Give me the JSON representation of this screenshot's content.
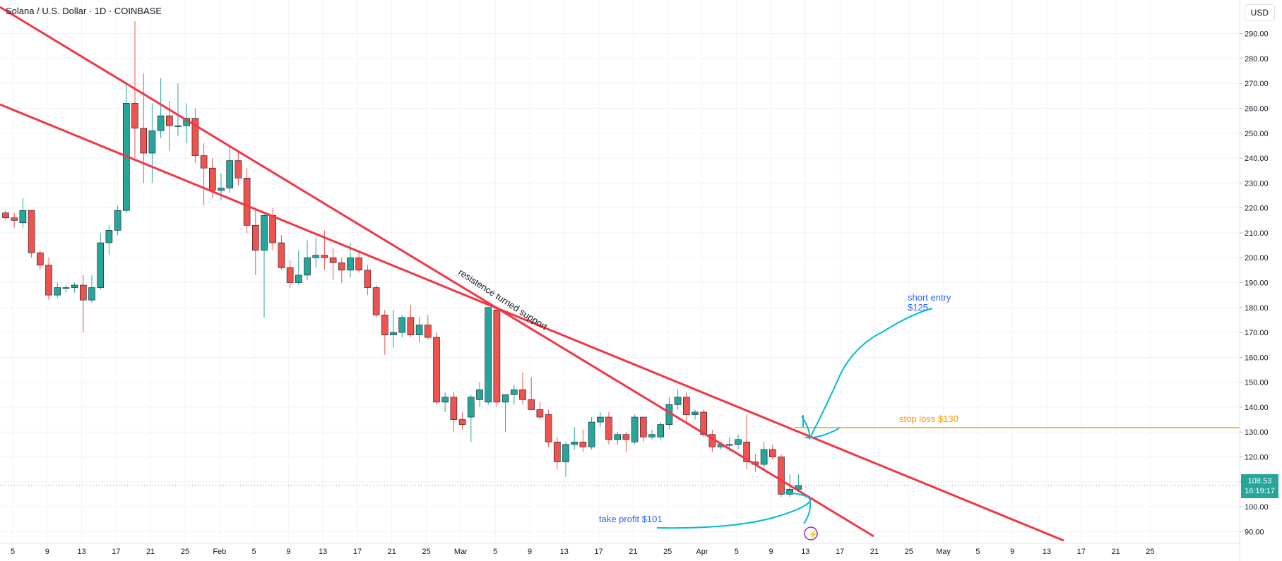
{
  "header": {
    "title": "Solana / U.S. Dollar · 1D · COINBASE"
  },
  "currency_button": "USD",
  "price_tag": {
    "price": "108.53",
    "countdown": "16:19:17"
  },
  "colors": {
    "up": "#26a69a",
    "down": "#ef5350",
    "trendline": "#f23645",
    "stoploss": "#ff9800",
    "annot_blue": "#2962ff",
    "sketch": "#00bcd4",
    "grid": "#f0f3fa",
    "text": "#131722"
  },
  "annotations": {
    "support_text": "resistence turned support",
    "short_entry_line1": "short entry",
    "short_entry_line2": "$125",
    "stop_loss": "stop loss $130",
    "take_profit": "take profit $101"
  },
  "chart_data": {
    "type": "candlestick",
    "title": "Solana / U.S. Dollar · 1D · COINBASE",
    "ylim": [
      85,
      295
    ],
    "y_ticks": [
      90,
      100,
      110,
      120,
      130,
      140,
      150,
      160,
      170,
      180,
      190,
      200,
      210,
      220,
      230,
      240,
      250,
      260,
      270,
      280,
      290
    ],
    "x_tick_labels": [
      "5",
      "9",
      "13",
      "17",
      "21",
      "25",
      "Feb",
      "5",
      "9",
      "13",
      "17",
      "21",
      "25",
      "Mar",
      "5",
      "9",
      "13",
      "17",
      "21",
      "25",
      "Apr",
      "5",
      "9",
      "13",
      "17",
      "21",
      "25",
      "May",
      "5",
      "9",
      "13",
      "17",
      "21",
      "25"
    ],
    "grid": true,
    "last_price": 108.53,
    "candles": [
      {
        "d": "Jan 1",
        "o": 218,
        "h": 219,
        "l": 215,
        "c": 216
      },
      {
        "d": "Jan 2",
        "o": 216,
        "h": 218,
        "l": 212,
        "c": 215
      },
      {
        "d": "Jan 3",
        "o": 214,
        "h": 224,
        "l": 212,
        "c": 219
      },
      {
        "d": "Jan 4",
        "o": 219,
        "h": 219,
        "l": 200,
        "c": 202
      },
      {
        "d": "Jan 5",
        "o": 202,
        "h": 203,
        "l": 195,
        "c": 197
      },
      {
        "d": "Jan 6",
        "o": 197,
        "h": 200,
        "l": 183,
        "c": 185
      },
      {
        "d": "Jan 7",
        "o": 185,
        "h": 190,
        "l": 184,
        "c": 188
      },
      {
        "d": "Jan 8",
        "o": 188,
        "h": 189,
        "l": 186,
        "c": 188
      },
      {
        "d": "Jan 9",
        "o": 188,
        "h": 190,
        "l": 186,
        "c": 189
      },
      {
        "d": "Jan 10",
        "o": 189,
        "h": 193,
        "l": 170,
        "c": 183
      },
      {
        "d": "Jan 11",
        "o": 183,
        "h": 193,
        "l": 182,
        "c": 188
      },
      {
        "d": "Jan 12",
        "o": 188,
        "h": 210,
        "l": 187,
        "c": 206
      },
      {
        "d": "Jan 13",
        "o": 206,
        "h": 213,
        "l": 201,
        "c": 211
      },
      {
        "d": "Jan 14",
        "o": 211,
        "h": 221,
        "l": 209,
        "c": 219
      },
      {
        "d": "Jan 15",
        "o": 219,
        "h": 270,
        "l": 218,
        "c": 262
      },
      {
        "d": "Jan 16",
        "o": 262,
        "h": 295,
        "l": 240,
        "c": 252
      },
      {
        "d": "Jan 17",
        "o": 252,
        "h": 274,
        "l": 230,
        "c": 242
      },
      {
        "d": "Jan 18",
        "o": 242,
        "h": 262,
        "l": 230,
        "c": 251
      },
      {
        "d": "Jan 19",
        "o": 251,
        "h": 272,
        "l": 248,
        "c": 257
      },
      {
        "d": "Jan 20",
        "o": 257,
        "h": 263,
        "l": 243,
        "c": 253
      },
      {
        "d": "Jan 21",
        "o": 253,
        "h": 270,
        "l": 249,
        "c": 253
      },
      {
        "d": "Jan 22",
        "o": 253,
        "h": 262,
        "l": 246,
        "c": 256
      },
      {
        "d": "Jan 23",
        "o": 256,
        "h": 260,
        "l": 238,
        "c": 241
      },
      {
        "d": "Jan 24",
        "o": 241,
        "h": 246,
        "l": 221,
        "c": 236
      },
      {
        "d": "Jan 25",
        "o": 236,
        "h": 240,
        "l": 224,
        "c": 227
      },
      {
        "d": "Jan 26",
        "o": 227,
        "h": 234,
        "l": 223,
        "c": 228
      },
      {
        "d": "Jan 27",
        "o": 228,
        "h": 245,
        "l": 226,
        "c": 239
      },
      {
        "d": "Jan 28",
        "o": 239,
        "h": 243,
        "l": 229,
        "c": 232
      },
      {
        "d": "Jan 29",
        "o": 232,
        "h": 236,
        "l": 210,
        "c": 213
      },
      {
        "d": "Jan 30",
        "o": 213,
        "h": 219,
        "l": 193,
        "c": 203
      },
      {
        "d": "Jan 31",
        "o": 203,
        "h": 218,
        "l": 176,
        "c": 217
      },
      {
        "d": "Feb 1",
        "o": 217,
        "h": 220,
        "l": 203,
        "c": 206
      },
      {
        "d": "Feb 2",
        "o": 206,
        "h": 209,
        "l": 195,
        "c": 196
      },
      {
        "d": "Feb 3",
        "o": 196,
        "h": 199,
        "l": 188,
        "c": 190
      },
      {
        "d": "Feb 4",
        "o": 190,
        "h": 203,
        "l": 189,
        "c": 193
      },
      {
        "d": "Feb 5",
        "o": 193,
        "h": 207,
        "l": 191,
        "c": 200
      },
      {
        "d": "Feb 6",
        "o": 200,
        "h": 208,
        "l": 196,
        "c": 201
      },
      {
        "d": "Feb 7",
        "o": 201,
        "h": 211,
        "l": 195,
        "c": 200
      },
      {
        "d": "Feb 8",
        "o": 200,
        "h": 204,
        "l": 191,
        "c": 198
      },
      {
        "d": "Feb 9",
        "o": 198,
        "h": 200,
        "l": 190,
        "c": 195
      },
      {
        "d": "Feb 10",
        "o": 195,
        "h": 206,
        "l": 192,
        "c": 200
      },
      {
        "d": "Feb 11",
        "o": 200,
        "h": 203,
        "l": 194,
        "c": 195
      },
      {
        "d": "Feb 12",
        "o": 195,
        "h": 197,
        "l": 185,
        "c": 188
      },
      {
        "d": "Feb 13",
        "o": 188,
        "h": 189,
        "l": 176,
        "c": 177
      },
      {
        "d": "Feb 14",
        "o": 177,
        "h": 179,
        "l": 161,
        "c": 169
      },
      {
        "d": "Feb 15",
        "o": 169,
        "h": 179,
        "l": 164,
        "c": 170
      },
      {
        "d": "Feb 16",
        "o": 170,
        "h": 177,
        "l": 168,
        "c": 176
      },
      {
        "d": "Feb 17",
        "o": 176,
        "h": 181,
        "l": 168,
        "c": 169
      },
      {
        "d": "Feb 18",
        "o": 169,
        "h": 176,
        "l": 166,
        "c": 173
      },
      {
        "d": "Feb 19",
        "o": 173,
        "h": 177,
        "l": 167,
        "c": 168
      },
      {
        "d": "Feb 20",
        "o": 168,
        "h": 170,
        "l": 141,
        "c": 142
      },
      {
        "d": "Feb 21",
        "o": 142,
        "h": 146,
        "l": 138,
        "c": 144
      },
      {
        "d": "Feb 22",
        "o": 144,
        "h": 146,
        "l": 130,
        "c": 135
      },
      {
        "d": "Feb 23",
        "o": 135,
        "h": 138,
        "l": 131,
        "c": 133
      },
      {
        "d": "Feb 24",
        "o": 136,
        "h": 145,
        "l": 126,
        "c": 144
      },
      {
        "d": "Feb 25",
        "o": 143,
        "h": 150,
        "l": 140,
        "c": 147
      },
      {
        "d": "Feb 26",
        "o": 142,
        "h": 180,
        "l": 141,
        "c": 180
      },
      {
        "d": "Feb 27",
        "o": 179,
        "h": 180,
        "l": 140,
        "c": 142
      },
      {
        "d": "Feb 28",
        "o": 142,
        "h": 145,
        "l": 130,
        "c": 145
      },
      {
        "d": "Mar 1",
        "o": 145,
        "h": 149,
        "l": 141,
        "c": 147
      },
      {
        "d": "Mar 2",
        "o": 147,
        "h": 154,
        "l": 141,
        "c": 143
      },
      {
        "d": "Mar 3",
        "o": 143,
        "h": 152,
        "l": 139,
        "c": 139
      },
      {
        "d": "Mar 4",
        "o": 139,
        "h": 142,
        "l": 135,
        "c": 136
      },
      {
        "d": "Mar 5",
        "o": 137,
        "h": 139,
        "l": 124,
        "c": 126
      },
      {
        "d": "Mar 6",
        "o": 126,
        "h": 128,
        "l": 115,
        "c": 118
      },
      {
        "d": "Mar 7",
        "o": 118,
        "h": 126,
        "l": 112,
        "c": 125
      },
      {
        "d": "Mar 8",
        "o": 125,
        "h": 132,
        "l": 123,
        "c": 126
      },
      {
        "d": "Mar 9",
        "o": 126,
        "h": 131,
        "l": 122,
        "c": 124
      },
      {
        "d": "Mar 10",
        "o": 124,
        "h": 136,
        "l": 123,
        "c": 134
      },
      {
        "d": "Mar 11",
        "o": 134,
        "h": 138,
        "l": 132,
        "c": 136
      },
      {
        "d": "Mar 12",
        "o": 136,
        "h": 138,
        "l": 125,
        "c": 127
      },
      {
        "d": "Mar 13",
        "o": 127,
        "h": 130,
        "l": 125,
        "c": 129
      },
      {
        "d": "Mar 14",
        "o": 129,
        "h": 130,
        "l": 122,
        "c": 127
      },
      {
        "d": "Mar 15",
        "o": 126,
        "h": 137,
        "l": 125,
        "c": 136
      },
      {
        "d": "Mar 16",
        "o": 136,
        "h": 136,
        "l": 126,
        "c": 128
      },
      {
        "d": "Mar 17",
        "o": 128,
        "h": 131,
        "l": 127,
        "c": 129
      },
      {
        "d": "Mar 18",
        "o": 128,
        "h": 134,
        "l": 127,
        "c": 133
      },
      {
        "d": "Mar 19",
        "o": 133,
        "h": 144,
        "l": 131,
        "c": 141
      },
      {
        "d": "Mar 20",
        "o": 141,
        "h": 147,
        "l": 139,
        "c": 144
      },
      {
        "d": "Mar 21",
        "o": 144,
        "h": 146,
        "l": 134,
        "c": 137
      },
      {
        "d": "Mar 22",
        "o": 137,
        "h": 139,
        "l": 135,
        "c": 138
      },
      {
        "d": "Mar 23",
        "o": 138,
        "h": 139,
        "l": 128,
        "c": 129
      },
      {
        "d": "Mar 24",
        "o": 129,
        "h": 131,
        "l": 122,
        "c": 124
      },
      {
        "d": "Mar 25",
        "o": 124,
        "h": 126,
        "l": 123,
        "c": 125
      },
      {
        "d": "Mar 26",
        "o": 125,
        "h": 128,
        "l": 122,
        "c": 125
      },
      {
        "d": "Mar 27",
        "o": 125,
        "h": 129,
        "l": 123,
        "c": 127
      },
      {
        "d": "Mar 28",
        "o": 126,
        "h": 137,
        "l": 115,
        "c": 118
      },
      {
        "d": "Mar 29",
        "o": 118,
        "h": 121,
        "l": 114,
        "c": 117
      },
      {
        "d": "Mar 30",
        "o": 117,
        "h": 126,
        "l": 115,
        "c": 123
      },
      {
        "d": "Mar 31",
        "o": 123,
        "h": 125,
        "l": 119,
        "c": 120
      },
      {
        "d": "Apr 1",
        "o": 120,
        "h": 121,
        "l": 104,
        "c": 105
      },
      {
        "d": "Apr 2",
        "o": 105,
        "h": 113,
        "l": 104,
        "c": 107
      },
      {
        "d": "Apr 3",
        "o": 107,
        "h": 113,
        "l": 106,
        "c": 108.53
      }
    ]
  }
}
